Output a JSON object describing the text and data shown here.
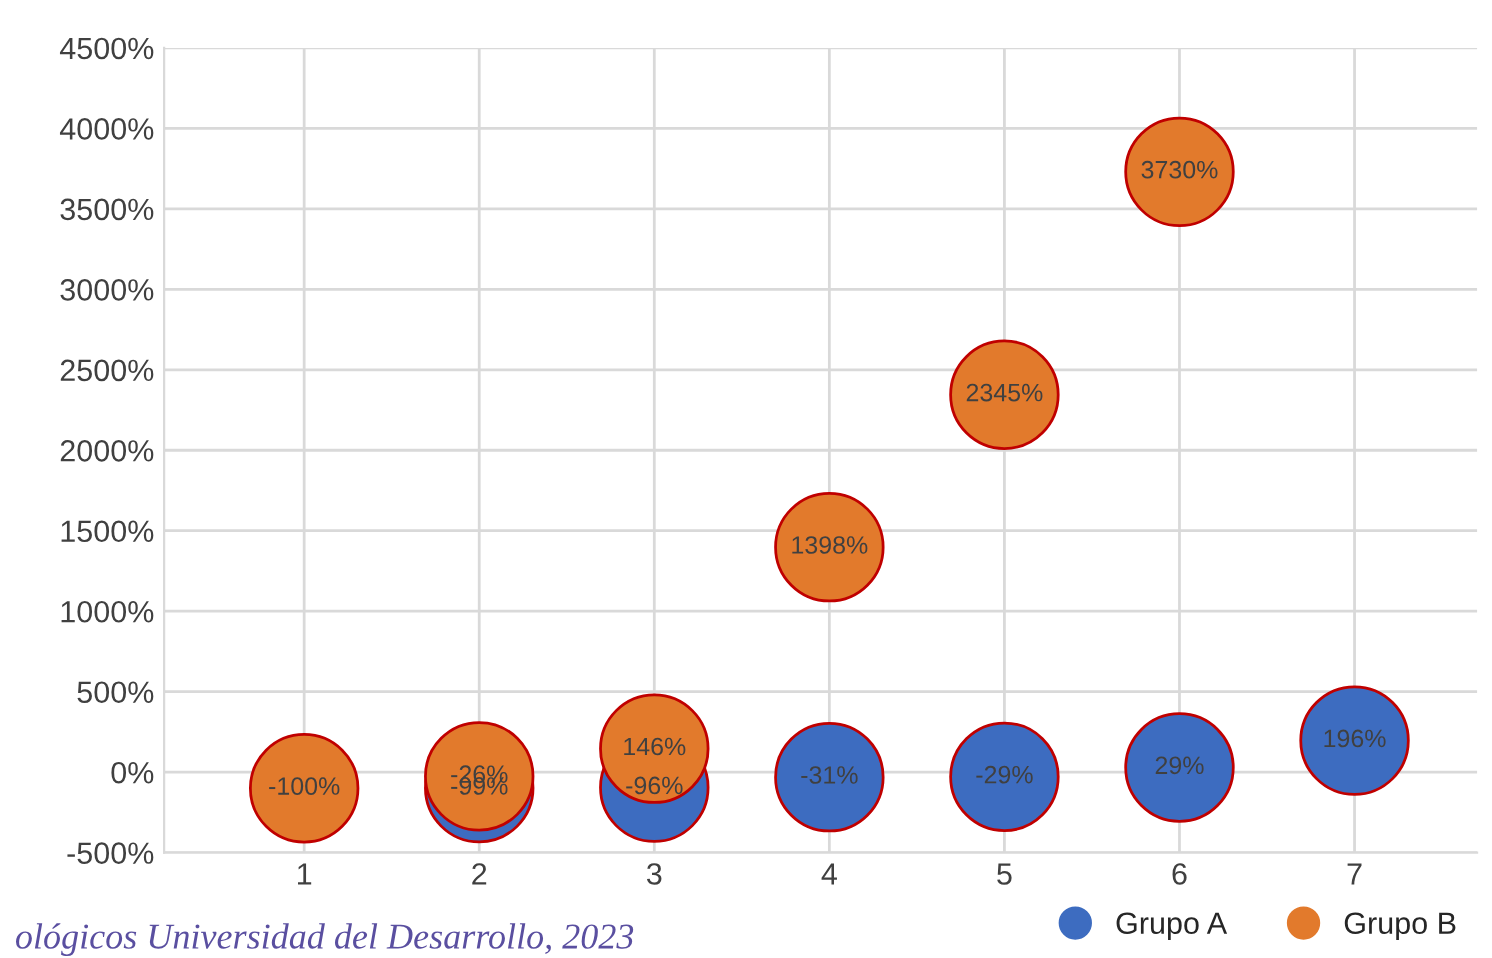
{
  "chart_data": {
    "type": "scatter",
    "categories": [
      "1",
      "2",
      "3",
      "4",
      "5",
      "6",
      "7"
    ],
    "series": [
      {
        "name": "Grupo A",
        "color": "#3d6cc0",
        "values": [
          null,
          -99,
          -96,
          -31,
          -29,
          29,
          196
        ],
        "value_labels": [
          null,
          "-99%",
          "-96%",
          "-31%",
          "-29%",
          "29%",
          "196%"
        ]
      },
      {
        "name": "Grupo B",
        "color": "#e27a2c",
        "values": [
          -100,
          -26,
          146,
          1398,
          2345,
          3730,
          null
        ],
        "value_labels": [
          "-100%",
          "-26%",
          "146%",
          "1398%",
          "2345%",
          "3730%",
          null
        ]
      }
    ],
    "ylim": [
      -500,
      4500
    ],
    "yticks": [
      {
        "value": -500,
        "label": "-500%"
      },
      {
        "value": 0,
        "label": "0%"
      },
      {
        "value": 500,
        "label": "500%"
      },
      {
        "value": 1000,
        "label": "1000%"
      },
      {
        "value": 1500,
        "label": "1500%"
      },
      {
        "value": 2000,
        "label": "2000%"
      },
      {
        "value": 2500,
        "label": "2500%"
      },
      {
        "value": 3000,
        "label": "3000%"
      },
      {
        "value": 3500,
        "label": "3500%"
      },
      {
        "value": 4000,
        "label": "4000%"
      },
      {
        "value": 4500,
        "label": "4500%"
      }
    ],
    "grid": true,
    "marker": "circle",
    "legend": "bottom right",
    "annotations": [
      "ológicos Universidad del Desarrollo, 2023"
    ]
  }
}
